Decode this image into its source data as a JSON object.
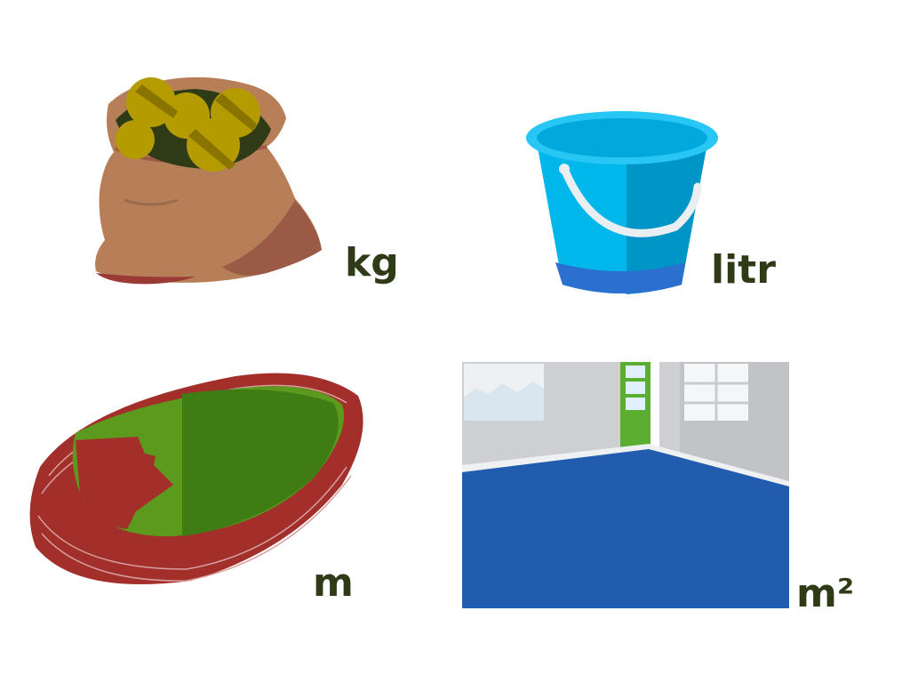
{
  "units": {
    "mass": "kg",
    "volume": "litr",
    "length": "m",
    "area": "m²"
  },
  "colors": {
    "label_text": "#2f3a17",
    "sack": "#b67f58",
    "sack_shadow": "#9a5a45",
    "potato": "#b39b00",
    "bucket": "#00b7eb",
    "bucket_dark": "#0095c7",
    "bucket_bottom": "#2b6fcf",
    "track": "#a32f2b",
    "field_light": "#5b9a1d",
    "field_dark": "#3d7d14",
    "floor": "#215cae",
    "wall": "#cdcfd3",
    "door": "#5bae32"
  },
  "illustrations": [
    {
      "icon": "sack-of-potatoes-icon"
    },
    {
      "icon": "bucket-icon"
    },
    {
      "icon": "running-track-icon"
    },
    {
      "icon": "room-floor-icon"
    }
  ]
}
